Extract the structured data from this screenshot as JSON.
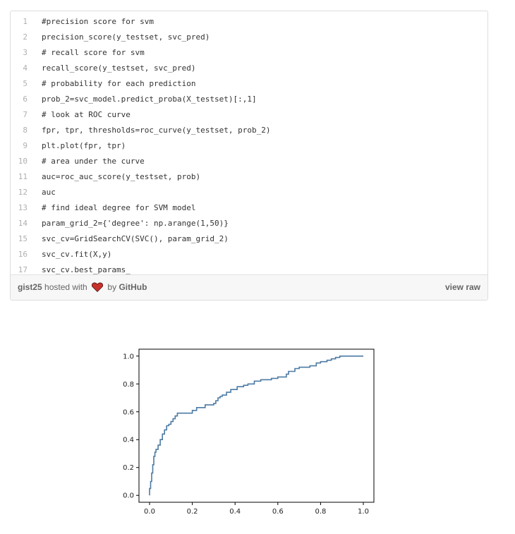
{
  "gist": {
    "lines": [
      {
        "num": "1",
        "code": "#precision score for svm"
      },
      {
        "num": "2",
        "code": "precision_score(y_testset, svc_pred)"
      },
      {
        "num": "3",
        "code": "# recall score for svm"
      },
      {
        "num": "4",
        "code": "recall_score(y_testset, svc_pred)"
      },
      {
        "num": "5",
        "code": "# probability for each prediction"
      },
      {
        "num": "6",
        "code": "prob_2=svc_model.predict_proba(X_testset)[:,1]"
      },
      {
        "num": "7",
        "code": "# look at ROC curve"
      },
      {
        "num": "8",
        "code": "fpr, tpr, thresholds=roc_curve(y_testset, prob_2)"
      },
      {
        "num": "9",
        "code": "plt.plot(fpr, tpr)"
      },
      {
        "num": "10",
        "code": "# area under the curve"
      },
      {
        "num": "11",
        "code": "auc=roc_auc_score(y_testset, prob)"
      },
      {
        "num": "12",
        "code": "auc"
      },
      {
        "num": "13",
        "code": "# find ideal degree for SVM model"
      },
      {
        "num": "14",
        "code": "param_grid_2={'degree': np.arange(1,50)}"
      },
      {
        "num": "15",
        "code": "svc_cv=GridSearchCV(SVC(), param_grid_2)"
      },
      {
        "num": "16",
        "code": "svc_cv.fit(X,y)"
      },
      {
        "num": "17",
        "code": "svc_cv.best_params_"
      }
    ],
    "footer": {
      "file_link": "gist25",
      "hosted_text": "hosted with",
      "by_text": "by",
      "github_link": "GitHub",
      "view_raw": "view raw"
    }
  },
  "chart_data": {
    "type": "line",
    "xlim": [
      0.0,
      1.0
    ],
    "ylim": [
      0.0,
      1.0
    ],
    "xticks": [
      "0.0",
      "0.2",
      "0.4",
      "0.6",
      "0.8",
      "1.0"
    ],
    "yticks": [
      "0.0",
      "0.2",
      "0.4",
      "0.6",
      "0.8",
      "1.0"
    ],
    "line_color": "#4c7aa3",
    "grid": false,
    "series": [
      {
        "x": [
          0.0,
          0.0,
          0.005,
          0.005,
          0.01,
          0.01,
          0.015,
          0.015,
          0.02,
          0.02,
          0.025,
          0.025,
          0.03,
          0.03,
          0.04,
          0.04,
          0.05,
          0.05,
          0.06,
          0.06,
          0.07,
          0.07,
          0.08,
          0.08,
          0.09,
          0.09,
          0.1,
          0.1,
          0.11,
          0.11,
          0.12,
          0.12,
          0.13,
          0.13,
          0.2,
          0.2,
          0.22,
          0.22,
          0.26,
          0.26,
          0.3,
          0.3,
          0.31,
          0.31,
          0.32,
          0.32,
          0.33,
          0.33,
          0.34,
          0.34,
          0.36,
          0.36,
          0.38,
          0.38,
          0.41,
          0.41,
          0.44,
          0.44,
          0.46,
          0.46,
          0.49,
          0.49,
          0.52,
          0.52,
          0.57,
          0.57,
          0.6,
          0.6,
          0.64,
          0.64,
          0.65,
          0.65,
          0.68,
          0.68,
          0.7,
          0.7,
          0.75,
          0.75,
          0.78,
          0.78,
          0.8,
          0.8,
          0.83,
          0.83,
          0.85,
          0.85,
          0.87,
          0.87,
          0.89,
          0.89,
          0.91,
          0.91,
          0.93,
          0.93,
          1.0
        ],
        "y": [
          0.0,
          0.05,
          0.05,
          0.1,
          0.1,
          0.16,
          0.16,
          0.22,
          0.22,
          0.28,
          0.28,
          0.31,
          0.31,
          0.33,
          0.33,
          0.36,
          0.36,
          0.4,
          0.4,
          0.44,
          0.44,
          0.47,
          0.47,
          0.5,
          0.5,
          0.51,
          0.51,
          0.53,
          0.53,
          0.55,
          0.55,
          0.57,
          0.57,
          0.59,
          0.59,
          0.61,
          0.61,
          0.63,
          0.63,
          0.65,
          0.65,
          0.66,
          0.66,
          0.68,
          0.68,
          0.7,
          0.7,
          0.71,
          0.71,
          0.72,
          0.72,
          0.74,
          0.74,
          0.76,
          0.76,
          0.78,
          0.78,
          0.79,
          0.79,
          0.8,
          0.8,
          0.82,
          0.82,
          0.83,
          0.83,
          0.84,
          0.84,
          0.85,
          0.85,
          0.87,
          0.87,
          0.89,
          0.89,
          0.91,
          0.91,
          0.92,
          0.92,
          0.93,
          0.93,
          0.95,
          0.95,
          0.96,
          0.96,
          0.97,
          0.97,
          0.98,
          0.98,
          0.99,
          0.99,
          1.0,
          1.0,
          1.0,
          1.0,
          1.0,
          1.0
        ]
      }
    ]
  }
}
